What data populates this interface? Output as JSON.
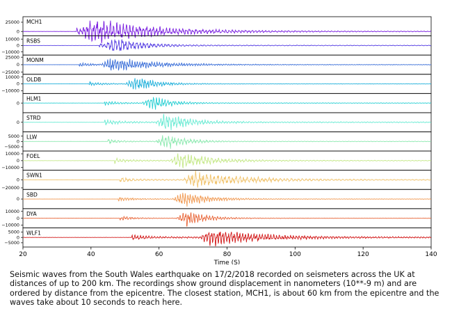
{
  "chart_data": {
    "type": "line",
    "xlabel": "Time (S)",
    "xlim": [
      20,
      140
    ],
    "xticks": [
      20,
      40,
      60,
      80,
      100,
      120,
      140
    ],
    "panels": [
      {
        "station": "MCH1",
        "color": "#7a1fe0",
        "yticks": [
          25000,
          0
        ],
        "ylim": [
          -12000,
          40000
        ],
        "onset": 35.8,
        "s_arrival": 38,
        "amp": 34000,
        "decay": 18,
        "tail": 1600
      },
      {
        "station": "RSBS",
        "color": "#5740e3",
        "yticks": [
          10000,
          0,
          -10000
        ],
        "ylim": [
          -15000,
          15000
        ],
        "onset": 42.5,
        "s_arrival": 45,
        "amp": 12000,
        "decay": 8,
        "tail": 900
      },
      {
        "station": "MONM",
        "color": "#3b6fd8",
        "yticks": [
          25000,
          0,
          -25000
        ],
        "ylim": [
          -32000,
          32000
        ],
        "onset": 36.5,
        "s_arrival": 44,
        "amp": 24000,
        "decay": 12,
        "tail": 1500
      },
      {
        "station": "OLDB",
        "color": "#23b1db",
        "yticks": [
          10000,
          0,
          -10000
        ],
        "ylim": [
          -14000,
          14000
        ],
        "onset": 39.5,
        "s_arrival": 51,
        "amp": 11000,
        "decay": 6,
        "tail": 500
      },
      {
        "station": "HLM1",
        "color": "#28cfd3",
        "yticks": [
          0
        ],
        "ylim": [
          -12000,
          12000
        ],
        "onset": 44,
        "s_arrival": 56,
        "amp": 9500,
        "decay": 5,
        "tail": 600
      },
      {
        "station": "STRD",
        "color": "#6cebd4",
        "yticks": [
          0
        ],
        "ylim": [
          -14000,
          14000
        ],
        "onset": 44,
        "s_arrival": 60,
        "amp": 12500,
        "decay": 7,
        "tail": 1200
      },
      {
        "station": "LLW",
        "color": "#8de9b0",
        "yticks": [
          5000,
          0,
          -5000
        ],
        "ylim": [
          -9000,
          9000
        ],
        "onset": 45,
        "s_arrival": 60,
        "amp": 7000,
        "decay": 6,
        "tail": 400
      },
      {
        "station": "FOEL",
        "color": "#c4e886",
        "yticks": [
          10000,
          0,
          -10000
        ],
        "ylim": [
          -14000,
          14000
        ],
        "onset": 47,
        "s_arrival": 64,
        "amp": 12000,
        "decay": 9,
        "tail": 900
      },
      {
        "station": "SWN1",
        "color": "#f1c46f",
        "yticks": [
          0,
          -20000
        ],
        "ylim": [
          -24000,
          24000
        ],
        "onset": 48.5,
        "s_arrival": 68,
        "amp": 21000,
        "decay": 14,
        "tail": 1800
      },
      {
        "station": "SBD",
        "color": "#f19a53",
        "yticks": [
          0
        ],
        "ylim": [
          -14000,
          14000
        ],
        "onset": 48,
        "s_arrival": 65,
        "amp": 12000,
        "decay": 7,
        "tail": 600
      },
      {
        "station": "DYA",
        "color": "#e8673a",
        "yticks": [
          10000,
          0,
          -10000
        ],
        "ylim": [
          -14000,
          14000
        ],
        "onset": 48.5,
        "s_arrival": 66,
        "amp": 12000,
        "decay": 6,
        "tail": 400
      },
      {
        "station": "WLF1",
        "color": "#d21a1a",
        "yticks": [
          5000,
          0,
          -5000
        ],
        "ylim": [
          -9000,
          9000
        ],
        "onset": 52,
        "s_arrival": 73,
        "amp": 8000,
        "decay": 14,
        "tail": 900
      }
    ]
  },
  "caption": "Seismic waves from the South Wales earthquake on 17/2/2018 recorded on seismeters across the UK at distances of up to 200 km. The recordings show ground displacement in nanometers (10**-9 m) and are ordered by distance from the epicentre. The closest station, MCH1, is about 60 km from the epicentre and the waves take about 10 seconds to reach here."
}
